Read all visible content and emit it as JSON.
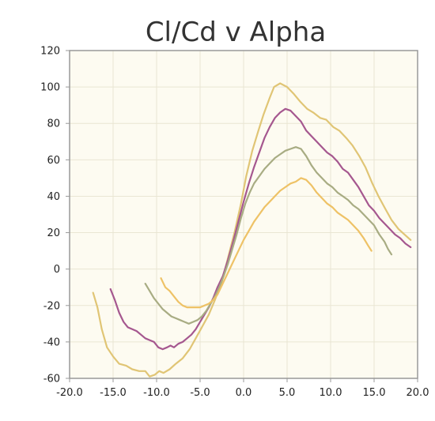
{
  "chart_data": {
    "type": "line",
    "title": "Cl/Cd v Alpha",
    "xlabel": "",
    "ylabel": "",
    "xlim": [
      -20,
      20
    ],
    "ylim": [
      -60,
      120
    ],
    "x_ticks": [
      "-20.0",
      "-15.0",
      "-10.0",
      "-5.0",
      "0.0",
      "5.0",
      "10.0",
      "15.0",
      "20.0"
    ],
    "y_ticks": [
      "120",
      "100",
      "80",
      "60",
      "40",
      "20",
      "0",
      "-20",
      "-40",
      "-60"
    ],
    "grid": true,
    "legend": "none",
    "colors": {
      "plot_background": "#fdfbf1",
      "grid": "#e9e6d3",
      "frame": "#999999"
    },
    "series": [
      {
        "color": "#e0c575",
        "points": [
          [
            -17.3,
            -13
          ],
          [
            -16.8,
            -21
          ],
          [
            -16.3,
            -33
          ],
          [
            -15.7,
            -43
          ],
          [
            -15.0,
            -48
          ],
          [
            -14.3,
            -52
          ],
          [
            -13.5,
            -53
          ],
          [
            -12.8,
            -55
          ],
          [
            -12.0,
            -56
          ],
          [
            -11.3,
            -56
          ],
          [
            -10.8,
            -59
          ],
          [
            -10.2,
            -58
          ],
          [
            -9.7,
            -56
          ],
          [
            -9.2,
            -57
          ],
          [
            -8.5,
            -55
          ],
          [
            -7.8,
            -52
          ],
          [
            -7.0,
            -49
          ],
          [
            -6.2,
            -44
          ],
          [
            -5.5,
            -38
          ],
          [
            -4.8,
            -32
          ],
          [
            -4.0,
            -25
          ],
          [
            -3.3,
            -17
          ],
          [
            -2.5,
            -7
          ],
          [
            -1.8,
            6
          ],
          [
            -1.0,
            21
          ],
          [
            -0.3,
            36
          ],
          [
            0.3,
            51
          ],
          [
            1.0,
            65
          ],
          [
            1.7,
            76
          ],
          [
            2.3,
            85
          ],
          [
            3.0,
            94
          ],
          [
            3.5,
            100
          ],
          [
            4.2,
            102
          ],
          [
            5.0,
            100
          ],
          [
            5.8,
            96
          ],
          [
            6.5,
            92
          ],
          [
            7.3,
            88
          ],
          [
            8.0,
            86
          ],
          [
            8.8,
            83
          ],
          [
            9.5,
            82
          ],
          [
            10.3,
            78
          ],
          [
            11.0,
            76
          ],
          [
            11.8,
            72
          ],
          [
            12.5,
            68
          ],
          [
            13.3,
            62
          ],
          [
            14.0,
            56
          ],
          [
            14.8,
            47
          ],
          [
            15.5,
            40
          ],
          [
            16.3,
            33
          ],
          [
            17.0,
            27
          ],
          [
            17.8,
            22
          ],
          [
            18.5,
            19
          ],
          [
            19.2,
            16
          ]
        ]
      },
      {
        "color": "#a5578f",
        "points": [
          [
            -15.3,
            -11
          ],
          [
            -14.8,
            -17
          ],
          [
            -14.3,
            -24
          ],
          [
            -13.8,
            -29
          ],
          [
            -13.3,
            -32
          ],
          [
            -12.8,
            -33
          ],
          [
            -12.3,
            -34
          ],
          [
            -11.8,
            -36
          ],
          [
            -11.3,
            -38
          ],
          [
            -10.8,
            -39
          ],
          [
            -10.3,
            -40
          ],
          [
            -9.8,
            -43
          ],
          [
            -9.3,
            -44
          ],
          [
            -8.8,
            -43
          ],
          [
            -8.4,
            -42
          ],
          [
            -8.0,
            -43
          ],
          [
            -7.5,
            -41
          ],
          [
            -7.0,
            -40
          ],
          [
            -6.5,
            -38
          ],
          [
            -6.0,
            -36
          ],
          [
            -5.5,
            -33
          ],
          [
            -5.0,
            -29
          ],
          [
            -4.5,
            -25
          ],
          [
            -4.0,
            -21
          ],
          [
            -3.5,
            -16
          ],
          [
            -3.0,
            -10
          ],
          [
            -2.4,
            -4
          ],
          [
            -1.8,
            5
          ],
          [
            -1.2,
            15
          ],
          [
            -0.6,
            26
          ],
          [
            0.0,
            37
          ],
          [
            0.6,
            47
          ],
          [
            1.2,
            56
          ],
          [
            1.8,
            64
          ],
          [
            2.4,
            72
          ],
          [
            3.0,
            78
          ],
          [
            3.6,
            83
          ],
          [
            4.2,
            86
          ],
          [
            4.8,
            88
          ],
          [
            5.4,
            87
          ],
          [
            6.0,
            84
          ],
          [
            6.6,
            81
          ],
          [
            7.2,
            76
          ],
          [
            7.8,
            73
          ],
          [
            8.4,
            70
          ],
          [
            9.0,
            67
          ],
          [
            9.6,
            64
          ],
          [
            10.2,
            62
          ],
          [
            10.8,
            59
          ],
          [
            11.4,
            55
          ],
          [
            12.0,
            53
          ],
          [
            12.6,
            49
          ],
          [
            13.2,
            45
          ],
          [
            13.8,
            40
          ],
          [
            14.4,
            35
          ],
          [
            15.0,
            32
          ],
          [
            15.6,
            28
          ],
          [
            16.2,
            25
          ],
          [
            16.8,
            22
          ],
          [
            17.4,
            19
          ],
          [
            18.0,
            17
          ],
          [
            18.6,
            14
          ],
          [
            19.2,
            12
          ]
        ]
      },
      {
        "color": "#a8ac83",
        "points": [
          [
            -11.3,
            -8
          ],
          [
            -10.8,
            -12
          ],
          [
            -10.3,
            -16
          ],
          [
            -9.8,
            -19
          ],
          [
            -9.3,
            -22
          ],
          [
            -8.8,
            -24
          ],
          [
            -8.3,
            -26
          ],
          [
            -7.8,
            -27
          ],
          [
            -7.3,
            -28
          ],
          [
            -6.8,
            -29
          ],
          [
            -6.3,
            -30
          ],
          [
            -5.8,
            -29
          ],
          [
            -5.3,
            -28
          ],
          [
            -4.8,
            -26
          ],
          [
            -4.3,
            -23
          ],
          [
            -3.8,
            -19
          ],
          [
            -3.3,
            -15
          ],
          [
            -2.8,
            -10
          ],
          [
            -2.3,
            -4
          ],
          [
            -1.8,
            3
          ],
          [
            -1.3,
            11
          ],
          [
            -0.8,
            19
          ],
          [
            -0.3,
            28
          ],
          [
            0.2,
            36
          ],
          [
            0.7,
            42
          ],
          [
            1.2,
            47
          ],
          [
            1.8,
            51
          ],
          [
            2.4,
            55
          ],
          [
            3.0,
            58
          ],
          [
            3.6,
            61
          ],
          [
            4.2,
            63
          ],
          [
            4.8,
            65
          ],
          [
            5.4,
            66
          ],
          [
            6.0,
            67
          ],
          [
            6.6,
            66
          ],
          [
            7.2,
            62
          ],
          [
            7.8,
            57
          ],
          [
            8.4,
            53
          ],
          [
            9.0,
            50
          ],
          [
            9.6,
            47
          ],
          [
            10.2,
            45
          ],
          [
            10.8,
            42
          ],
          [
            11.4,
            40
          ],
          [
            12.0,
            38
          ],
          [
            12.6,
            35
          ],
          [
            13.2,
            33
          ],
          [
            13.8,
            30
          ],
          [
            14.4,
            27
          ],
          [
            15.0,
            24
          ],
          [
            15.6,
            19
          ],
          [
            16.2,
            15
          ],
          [
            16.6,
            11
          ],
          [
            17.0,
            8
          ]
        ]
      },
      {
        "color": "#eec266",
        "points": [
          [
            -9.5,
            -5
          ],
          [
            -9.0,
            -10
          ],
          [
            -8.5,
            -12
          ],
          [
            -8.0,
            -15
          ],
          [
            -7.5,
            -18
          ],
          [
            -7.0,
            -20
          ],
          [
            -6.5,
            -21
          ],
          [
            -6.0,
            -21
          ],
          [
            -5.5,
            -21
          ],
          [
            -5.0,
            -21
          ],
          [
            -4.5,
            -20
          ],
          [
            -4.0,
            -19
          ],
          [
            -3.5,
            -17
          ],
          [
            -3.0,
            -14
          ],
          [
            -2.5,
            -9
          ],
          [
            -2.0,
            -4
          ],
          [
            -1.5,
            1
          ],
          [
            -1.0,
            6
          ],
          [
            -0.5,
            11
          ],
          [
            0.0,
            16
          ],
          [
            0.6,
            21
          ],
          [
            1.2,
            26
          ],
          [
            1.8,
            30
          ],
          [
            2.4,
            34
          ],
          [
            3.0,
            37
          ],
          [
            3.6,
            40
          ],
          [
            4.2,
            43
          ],
          [
            4.8,
            45
          ],
          [
            5.4,
            47
          ],
          [
            6.0,
            48
          ],
          [
            6.6,
            50
          ],
          [
            7.2,
            49
          ],
          [
            7.8,
            46
          ],
          [
            8.4,
            42
          ],
          [
            9.0,
            39
          ],
          [
            9.6,
            36
          ],
          [
            10.2,
            34
          ],
          [
            10.8,
            31
          ],
          [
            11.4,
            29
          ],
          [
            12.0,
            27
          ],
          [
            12.6,
            24
          ],
          [
            13.2,
            21
          ],
          [
            13.8,
            17
          ],
          [
            14.3,
            13
          ],
          [
            14.7,
            10
          ]
        ]
      }
    ]
  }
}
